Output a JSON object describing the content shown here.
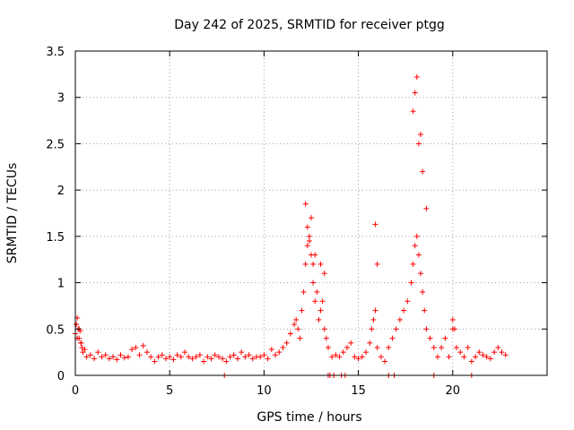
{
  "chart_data": {
    "type": "scatter",
    "title": "Day 242 of 2025, SRMTID for receiver ptgg",
    "xlabel": "GPS time / hours",
    "ylabel": "SRMTID / TECUs",
    "xlim": [
      0,
      25
    ],
    "ylim": [
      0,
      3.5
    ],
    "x_ticks": [
      0,
      5,
      10,
      15,
      20
    ],
    "y_ticks": [
      0,
      0.5,
      1,
      1.5,
      2,
      2.5,
      3,
      3.5
    ],
    "x_tick_labels": [
      "0",
      "5",
      "10",
      "15",
      "20"
    ],
    "y_tick_labels": [
      "0",
      "0.5",
      "1",
      "1.5",
      "2",
      "2.5",
      "3",
      "3.5"
    ],
    "grid": true,
    "marker": "plus",
    "color": "#ff0000",
    "series": [
      {
        "name": "SRMTID",
        "x": [
          0.0,
          0.05,
          0.1,
          0.15,
          0.2,
          0.25,
          0.3,
          0.35,
          0.4,
          0.5,
          0.6,
          0.8,
          1.0,
          1.2,
          1.4,
          1.6,
          1.8,
          2.0,
          2.2,
          2.4,
          2.6,
          2.8,
          3.0,
          3.2,
          3.4,
          3.6,
          3.8,
          4.0,
          4.2,
          4.4,
          4.6,
          4.8,
          5.0,
          5.2,
          5.4,
          5.6,
          5.8,
          6.0,
          6.2,
          6.4,
          6.6,
          6.8,
          7.0,
          7.2,
          7.4,
          7.6,
          7.8,
          8.0,
          8.2,
          8.4,
          8.6,
          8.8,
          9.0,
          9.2,
          9.4,
          9.6,
          9.8,
          10.0,
          10.2,
          10.4,
          10.6,
          10.8,
          11.0,
          11.2,
          11.4,
          11.6,
          11.7,
          11.8,
          11.9,
          12.0,
          12.1,
          12.2,
          12.3,
          12.4,
          12.5,
          12.6,
          12.7,
          12.8,
          12.9,
          13.0,
          13.1,
          13.2,
          13.3,
          13.4,
          13.6,
          13.8,
          14.0,
          14.2,
          14.4,
          14.6,
          14.8,
          15.0,
          15.2,
          15.4,
          15.6,
          15.7,
          15.8,
          15.9,
          16.0,
          16.2,
          16.4,
          16.6,
          16.8,
          17.0,
          17.2,
          17.4,
          17.6,
          17.8,
          17.9,
          18.0,
          18.1,
          18.2,
          18.3,
          18.4,
          18.5,
          18.6,
          18.8,
          19.0,
          19.2,
          19.4,
          19.6,
          19.8,
          20.0,
          20.2,
          20.4,
          20.6,
          20.8,
          21.0,
          21.2,
          21.4,
          21.6,
          21.8,
          22.0,
          22.2,
          22.4,
          22.6,
          22.8,
          0.1,
          0.2,
          0.3,
          12.2,
          12.3,
          12.4,
          12.5,
          12.6,
          12.7,
          13.0,
          13.2,
          15.9,
          16.0,
          17.9,
          18.0,
          18.1,
          18.2,
          18.3,
          18.4,
          18.6,
          20.0,
          20.1,
          13.4,
          13.5,
          13.7,
          14.1,
          14.3,
          16.6,
          16.9,
          19.0,
          21.0,
          7.9
        ],
        "y": [
          0.45,
          0.55,
          0.62,
          0.5,
          0.4,
          0.48,
          0.35,
          0.3,
          0.25,
          0.28,
          0.2,
          0.22,
          0.18,
          0.25,
          0.2,
          0.22,
          0.18,
          0.2,
          0.17,
          0.22,
          0.19,
          0.2,
          0.28,
          0.3,
          0.22,
          0.32,
          0.25,
          0.2,
          0.15,
          0.2,
          0.22,
          0.18,
          0.2,
          0.17,
          0.22,
          0.2,
          0.25,
          0.2,
          0.18,
          0.2,
          0.22,
          0.15,
          0.2,
          0.18,
          0.22,
          0.2,
          0.18,
          0.15,
          0.2,
          0.22,
          0.18,
          0.25,
          0.2,
          0.22,
          0.18,
          0.2,
          0.2,
          0.22,
          0.18,
          0.28,
          0.22,
          0.25,
          0.3,
          0.35,
          0.45,
          0.55,
          0.6,
          0.5,
          0.4,
          0.7,
          0.9,
          1.2,
          1.4,
          1.5,
          1.3,
          1.0,
          0.8,
          0.9,
          0.6,
          0.7,
          0.8,
          0.5,
          0.4,
          0.3,
          0.2,
          0.22,
          0.2,
          0.25,
          0.3,
          0.35,
          0.2,
          0.18,
          0.2,
          0.25,
          0.35,
          0.5,
          0.6,
          0.7,
          0.3,
          0.2,
          0.15,
          0.3,
          0.4,
          0.5,
          0.6,
          0.7,
          0.8,
          1.0,
          1.2,
          1.4,
          1.5,
          1.3,
          1.1,
          0.9,
          0.7,
          0.5,
          0.4,
          0.3,
          0.2,
          0.3,
          0.4,
          0.2,
          0.5,
          0.3,
          0.25,
          0.2,
          0.3,
          0.15,
          0.2,
          0.25,
          0.22,
          0.2,
          0.18,
          0.25,
          0.3,
          0.25,
          0.22,
          0.4,
          0.5,
          0.35,
          1.85,
          1.6,
          1.45,
          1.7,
          1.2,
          1.3,
          1.2,
          1.1,
          1.63,
          1.2,
          2.85,
          3.05,
          3.22,
          2.5,
          2.6,
          2.2,
          1.8,
          0.6,
          0.5,
          0,
          0,
          0,
          0,
          0,
          0,
          0,
          0,
          0,
          0
        ]
      }
    ]
  }
}
